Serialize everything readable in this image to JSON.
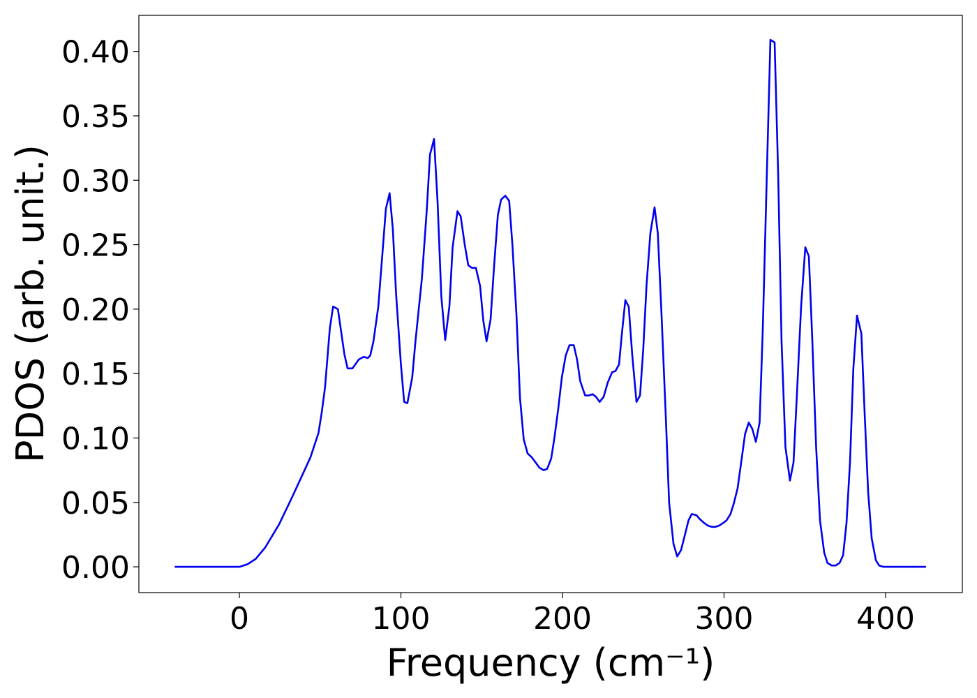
{
  "chart_data": {
    "type": "line",
    "xlabel": "Frequency (cm⁻¹)",
    "ylabel": "PDOS (arb. unit.)",
    "xlim": [
      -62.2,
      447.5
    ],
    "ylim": [
      -0.02,
      0.428
    ],
    "xticks": [
      0,
      100,
      200,
      300,
      400
    ],
    "yticks": [
      {
        "value": 0,
        "label": "0.00"
      },
      0.05,
      {
        "value": 0.1,
        "label": "0.10"
      },
      0.15,
      {
        "value": 0.2,
        "label": "0.20"
      },
      0.25,
      {
        "value": 0.3,
        "label": "0.30"
      },
      0.35,
      {
        "value": 0.4,
        "label": "0.40"
      }
    ],
    "grid": false,
    "series": [
      {
        "color": "#0000ee",
        "x": [
          -40,
          0,
          5,
          10,
          16,
          24.6,
          33,
          40,
          44,
          49,
          51,
          53,
          56,
          58,
          61,
          65,
          67,
          70,
          74,
          77,
          79.5,
          81,
          83,
          86,
          90.7,
          93,
          95,
          97,
          100,
          102,
          104,
          107,
          109,
          113,
          116,
          118,
          120.5,
          122.7,
          125,
          127.4,
          130,
          132,
          135,
          137,
          139.5,
          141.7,
          144,
          146.4,
          149,
          151,
          153,
          155.5,
          157.7,
          160,
          162,
          164.6,
          167,
          169,
          171.5,
          173.7,
          176,
          178.4,
          181,
          185.7,
          188.3,
          190.5,
          193,
          195,
          197.4,
          199.6,
          202,
          204.3,
          207,
          209,
          211,
          214,
          216.4,
          218.6,
          220.7,
          223,
          225.5,
          228,
          230.7,
          232.8,
          235,
          236.7,
          238.9,
          241,
          243.2,
          245.8,
          248,
          250,
          252,
          254.4,
          257,
          259,
          261.3,
          264,
          266,
          268.7,
          271,
          273.4,
          275.6,
          278,
          280,
          283,
          285,
          287.7,
          290,
          292.4,
          294.6,
          297,
          299.4,
          301.5,
          304,
          306,
          308.4,
          310.6,
          313,
          315.3,
          317.5,
          319.7,
          322,
          324,
          326.6,
          328.7,
          331.3,
          333.5,
          335.6,
          338,
          340.8,
          343,
          345,
          347.7,
          350.3,
          352.5,
          354.6,
          357,
          359.4,
          362,
          364,
          366.7,
          369,
          371.5,
          373.7,
          375.8,
          378,
          380,
          382.3,
          385,
          387,
          389.2,
          391.4,
          394,
          396,
          398.7,
          425
        ],
        "values": [
          0,
          0,
          0.002,
          0.006,
          0.015,
          0.033,
          0.055,
          0.074,
          0.085,
          0.104,
          0.12,
          0.139,
          0.185,
          0.202,
          0.2,
          0.165,
          0.154,
          0.154,
          0.161,
          0.163,
          0.162,
          0.164,
          0.175,
          0.202,
          0.278,
          0.29,
          0.262,
          0.212,
          0.157,
          0.128,
          0.127,
          0.147,
          0.175,
          0.224,
          0.277,
          0.32,
          0.332,
          0.283,
          0.21,
          0.176,
          0.202,
          0.248,
          0.276,
          0.272,
          0.25,
          0.234,
          0.232,
          0.232,
          0.218,
          0.191,
          0.175,
          0.192,
          0.234,
          0.273,
          0.285,
          0.288,
          0.284,
          0.25,
          0.196,
          0.131,
          0.099,
          0.088,
          0.085,
          0.077,
          0.075,
          0.076,
          0.084,
          0.1,
          0.123,
          0.147,
          0.164,
          0.172,
          0.172,
          0.161,
          0.144,
          0.133,
          0.133,
          0.134,
          0.132,
          0.128,
          0.132,
          0.143,
          0.151,
          0.152,
          0.157,
          0.18,
          0.207,
          0.202,
          0.164,
          0.128,
          0.133,
          0.169,
          0.218,
          0.259,
          0.279,
          0.259,
          0.196,
          0.115,
          0.05,
          0.018,
          0.008,
          0.013,
          0.024,
          0.036,
          0.041,
          0.04,
          0.037,
          0.034,
          0.032,
          0.031,
          0.031,
          0.032,
          0.034,
          0.036,
          0.041,
          0.049,
          0.061,
          0.081,
          0.103,
          0.112,
          0.107,
          0.097,
          0.112,
          0.185,
          0.31,
          0.409,
          0.407,
          0.305,
          0.175,
          0.093,
          0.067,
          0.081,
          0.131,
          0.202,
          0.248,
          0.241,
          0.177,
          0.093,
          0.036,
          0.011,
          0.003,
          0.001,
          0.001,
          0.003,
          0.009,
          0.034,
          0.082,
          0.153,
          0.195,
          0.181,
          0.12,
          0.058,
          0.022,
          0.005,
          0.001,
          0,
          0
        ]
      }
    ]
  }
}
